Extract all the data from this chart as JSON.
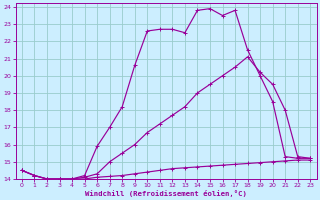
{
  "xlabel": "Windchill (Refroidissement éolien,°C)",
  "bg_color": "#cceeff",
  "line_color": "#990099",
  "grid_color": "#99cccc",
  "xlim": [
    -0.5,
    23.5
  ],
  "ylim": [
    14,
    24.2
  ],
  "xticks": [
    0,
    1,
    2,
    3,
    4,
    5,
    6,
    7,
    8,
    9,
    10,
    11,
    12,
    13,
    14,
    15,
    16,
    17,
    18,
    19,
    20,
    21,
    22,
    23
  ],
  "yticks": [
    14,
    15,
    16,
    17,
    18,
    19,
    20,
    21,
    22,
    23,
    24
  ],
  "line1_x": [
    0,
    1,
    2,
    3,
    4,
    5,
    6,
    7,
    8,
    9,
    10,
    11,
    12,
    13,
    14,
    15,
    16,
    17,
    18,
    19,
    20,
    21,
    22,
    23
  ],
  "line1_y": [
    14.5,
    14.2,
    14.0,
    14.0,
    14.0,
    14.2,
    15.9,
    17.0,
    18.2,
    20.6,
    22.6,
    22.7,
    22.7,
    22.5,
    23.8,
    23.9,
    23.5,
    23.8,
    21.5,
    20.0,
    18.5,
    15.3,
    15.2,
    15.2
  ],
  "line2_x": [
    0,
    1,
    2,
    3,
    4,
    5,
    6,
    7,
    8,
    9,
    10,
    11,
    12,
    13,
    14,
    15,
    16,
    17,
    18,
    19,
    20,
    21,
    22,
    23
  ],
  "line2_y": [
    14.5,
    14.2,
    14.0,
    14.0,
    14.0,
    14.1,
    14.3,
    15.0,
    15.5,
    16.0,
    16.7,
    17.2,
    17.7,
    18.2,
    19.0,
    19.5,
    20.0,
    20.5,
    21.1,
    20.2,
    19.5,
    18.0,
    15.3,
    15.2
  ],
  "line3_x": [
    0,
    1,
    2,
    3,
    4,
    5,
    6,
    7,
    8,
    9,
    10,
    11,
    12,
    13,
    14,
    15,
    16,
    17,
    18,
    19,
    20,
    21,
    22,
    23
  ],
  "line3_y": [
    14.5,
    14.2,
    14.0,
    14.0,
    14.0,
    14.0,
    14.1,
    14.15,
    14.2,
    14.3,
    14.4,
    14.5,
    14.6,
    14.65,
    14.7,
    14.75,
    14.8,
    14.85,
    14.9,
    14.95,
    15.0,
    15.05,
    15.1,
    15.1
  ]
}
